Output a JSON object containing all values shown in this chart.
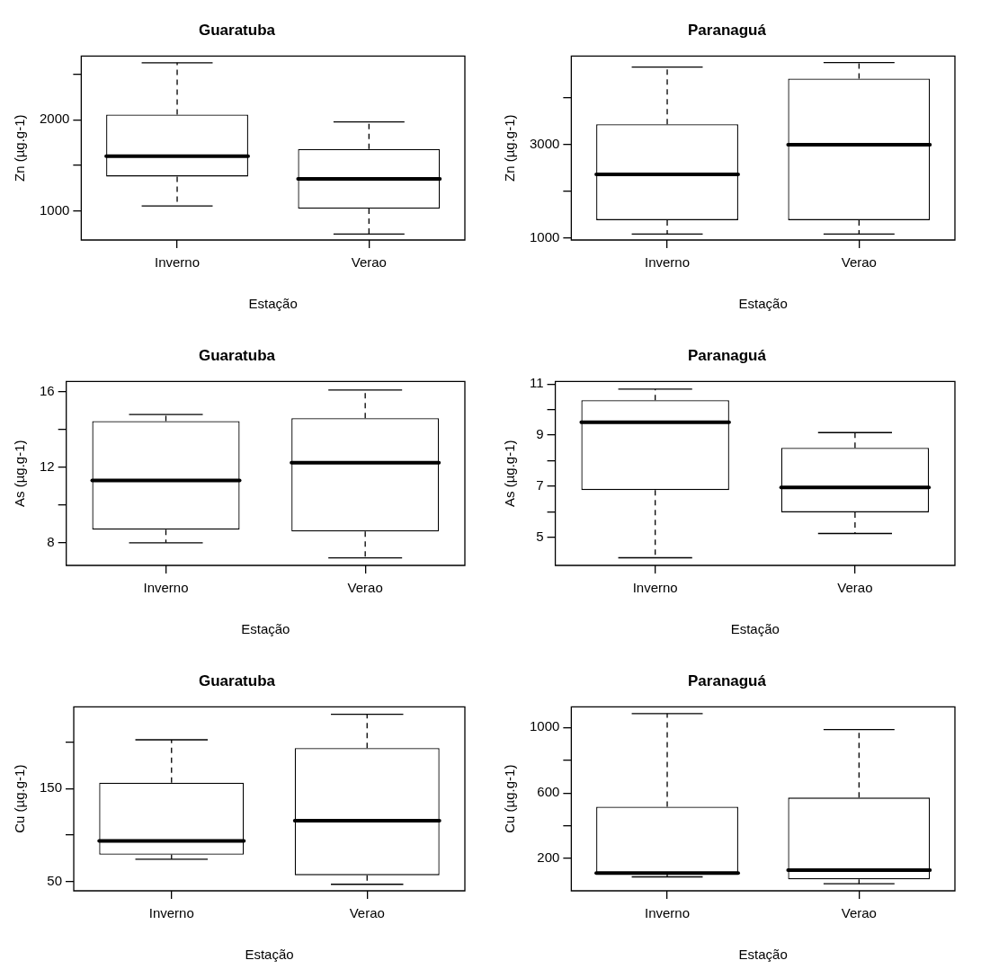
{
  "chart_data": [
    {
      "type": "box",
      "title": "Guaratuba",
      "xlabel": "Estação",
      "ylabel": "Zn (µg.g-1)",
      "color": "#000000",
      "categories": [
        "Inverno",
        "Verao"
      ],
      "boxes": [
        {
          "low": 1053,
          "q1": 1377,
          "median": 1601,
          "q3": 2057,
          "high": 2627
        },
        {
          "low": 746,
          "q1": 1026,
          "median": 1351,
          "q3": 1680,
          "high": 1978
        }
      ],
      "ylim": [
        680,
        2700
      ],
      "yticks": [
        1000,
        {
          "value": 1500,
          "label": null
        },
        2000,
        {
          "value": 2500,
          "label": null
        }
      ]
    },
    {
      "type": "box",
      "title": "Paranaguá",
      "xlabel": "Estação",
      "ylabel": "Zn (µg.g-1)",
      "color": "#000000",
      "categories": [
        "Inverno",
        "Verao"
      ],
      "boxes": [
        {
          "low": 1086,
          "q1": 1386,
          "median": 2365,
          "q3": 3438,
          "high": 4665
        },
        {
          "low": 1086,
          "q1": 1386,
          "median": 3000,
          "q3": 4416,
          "high": 4760
        }
      ],
      "ylim": [
        960,
        4900
      ],
      "yticks": [
        1000,
        {
          "value": 2000,
          "label": null
        },
        3000,
        {
          "value": 4000,
          "label": null
        }
      ]
    },
    {
      "type": "box",
      "title": "Guaratuba",
      "xlabel": "Estação",
      "ylabel": "As (µg.g-1)",
      "color": "#000000",
      "categories": [
        "Inverno",
        "Verao"
      ],
      "boxes": [
        {
          "low": 8.0,
          "q1": 8.7,
          "median": 11.3,
          "q3": 14.45,
          "high": 14.8
        },
        {
          "low": 7.2,
          "q1": 8.6,
          "median": 12.25,
          "q3": 14.6,
          "high": 16.1
        }
      ],
      "ylim": [
        6.8,
        16.55
      ],
      "yticks": [
        8,
        {
          "value": 10,
          "label": null
        },
        12,
        {
          "value": 14,
          "label": null
        },
        16
      ]
    },
    {
      "type": "box",
      "title": "Paranaguá",
      "xlabel": "Estação",
      "ylabel": "As (µg.g-1)",
      "color": "#000000",
      "categories": [
        "Inverno",
        "Verao"
      ],
      "boxes": [
        {
          "low": 4.2,
          "q1": 6.85,
          "median": 9.5,
          "q3": 10.37,
          "high": 10.8
        },
        {
          "low": 5.15,
          "q1": 5.98,
          "median": 6.95,
          "q3": 8.5,
          "high": 9.1
        }
      ],
      "ylim": [
        3.9,
        11.1
      ],
      "yticks": [
        5,
        {
          "value": 6,
          "label": null
        },
        7,
        {
          "value": 8,
          "label": null
        },
        9,
        {
          "value": 10,
          "label": null
        },
        11
      ]
    },
    {
      "type": "box",
      "title": "Guaratuba",
      "xlabel": "Estação",
      "ylabel": "Cu (µg.g-1)",
      "color": "#000000",
      "categories": [
        "Inverno",
        "Verao"
      ],
      "boxes": [
        {
          "low": 74,
          "q1": 79,
          "median": 93.6,
          "q3": 156.4,
          "high": 202.6
        },
        {
          "low": 47,
          "q1": 56.8,
          "median": 115.4,
          "q3": 193.6,
          "high": 230
        }
      ],
      "ylim": [
        40,
        238
      ],
      "yticks": [
        50,
        {
          "value": 100,
          "label": null
        },
        150,
        {
          "value": 200,
          "label": null
        }
      ]
    },
    {
      "type": "box",
      "title": "Paranaguá",
      "xlabel": "Estação",
      "ylabel": "Cu (µg.g-1)",
      "color": "#000000",
      "categories": [
        "Inverno",
        "Verao"
      ],
      "boxes": [
        {
          "low": 88,
          "q1": 105,
          "median": 112,
          "q3": 516,
          "high": 1085
        },
        {
          "low": 46,
          "q1": 73,
          "median": 129,
          "q3": 572,
          "high": 988
        }
      ],
      "ylim": [
        3,
        1126
      ],
      "yticks": [
        200,
        {
          "value": 400,
          "label": null
        },
        600,
        {
          "value": 800,
          "label": null
        },
        1000
      ]
    }
  ]
}
